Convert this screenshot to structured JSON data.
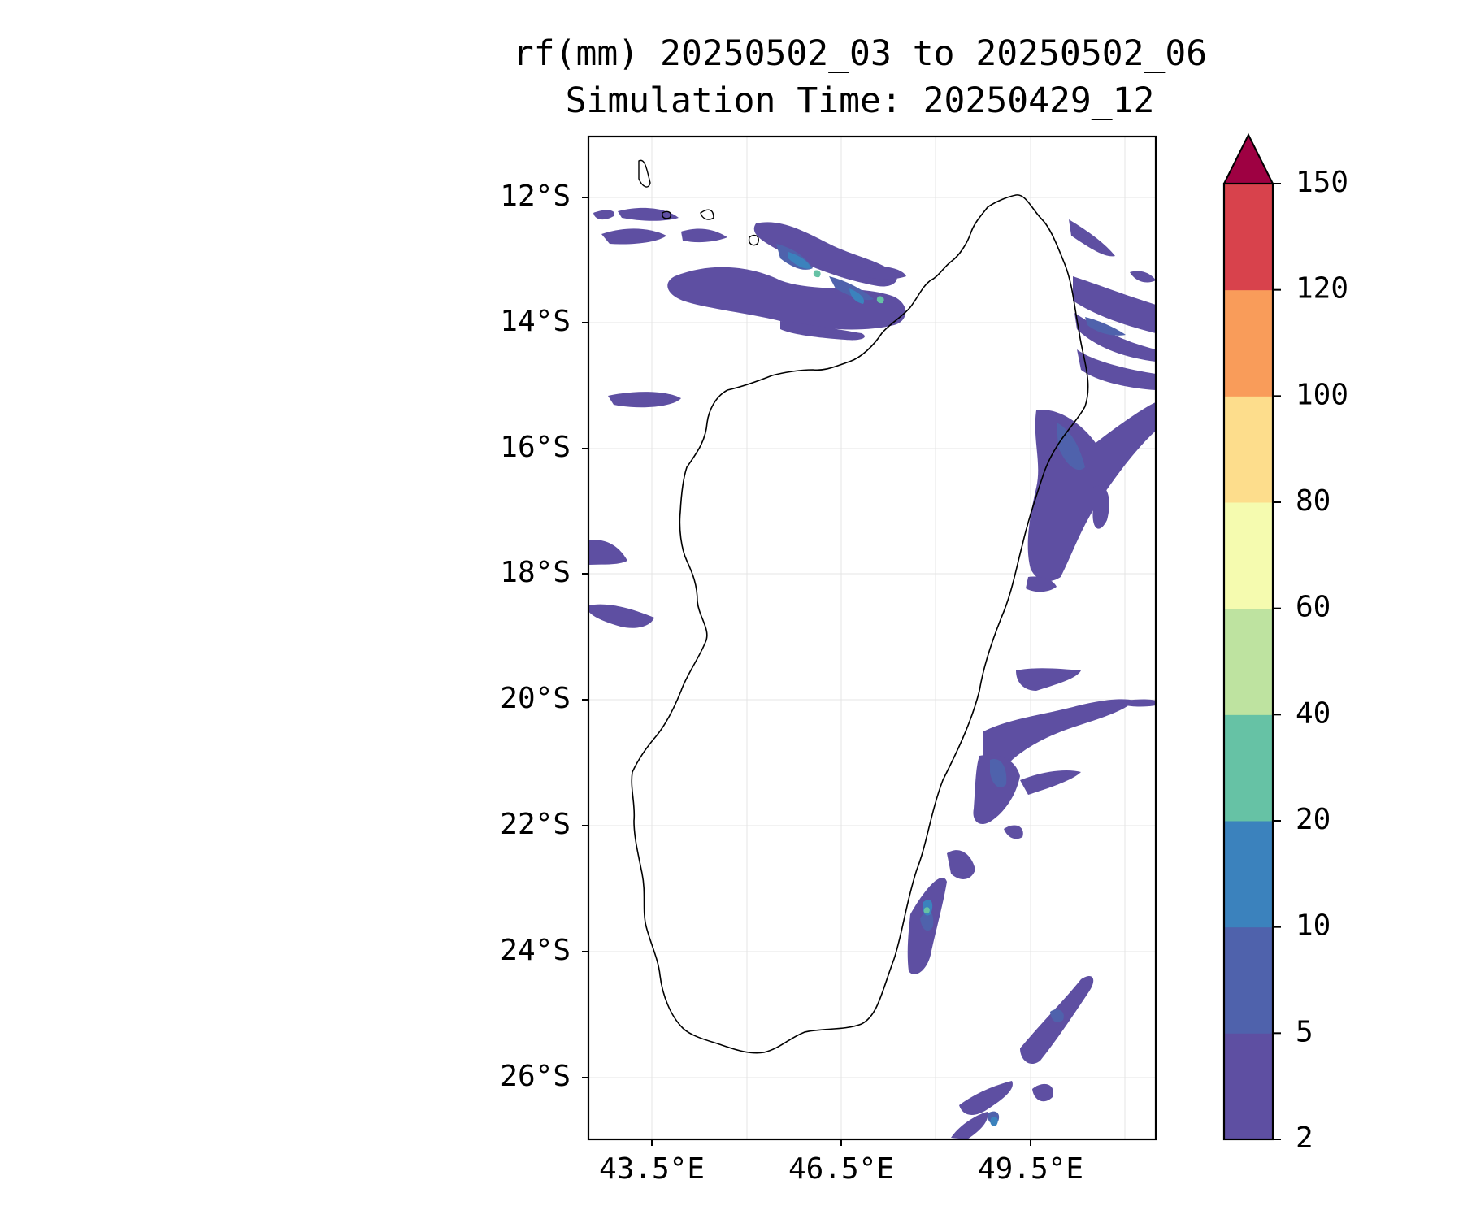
{
  "title": {
    "line1": "rf(mm) 20250502_03 to 20250502_06",
    "line2": "Simulation Time: 20250429_12"
  },
  "map": {
    "lat_ticks": [
      "12°S",
      "14°S",
      "16°S",
      "18°S",
      "20°S",
      "22°S",
      "24°S",
      "26°S"
    ],
    "lon_ticks": [
      "43.5°E",
      "46.5°E",
      "49.5°E"
    ],
    "extent": {
      "lon": [
        42.5,
        51.5
      ],
      "lat": [
        -27.0,
        -11.1
      ]
    },
    "gridlines": true,
    "region": "Madagascar"
  },
  "colorbar": {
    "labels": [
      "2",
      "5",
      "10",
      "20",
      "40",
      "60",
      "80",
      "100",
      "120",
      "150"
    ],
    "levels": [
      2,
      5,
      10,
      20,
      40,
      60,
      80,
      100,
      120,
      150
    ],
    "colors": [
      "#5e4fa2",
      "#4f62ac",
      "#3b82bd",
      "#66c2a5",
      "#bee3a0",
      "#f5fbaf",
      "#fddd8c",
      "#f99c5a",
      "#d8424c",
      "#9e0142"
    ],
    "extend": "max"
  }
}
